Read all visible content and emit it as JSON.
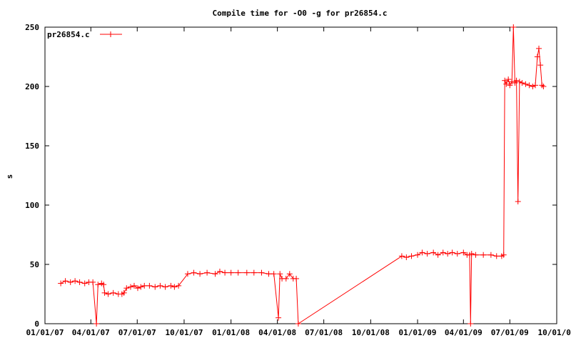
{
  "chart_data": {
    "type": "line",
    "title": "Compile time for -O0 -g for pr26854.c",
    "xlabel": "",
    "ylabel": "s",
    "ylim": [
      0,
      250
    ],
    "xlim": [
      "2007-01-01",
      "2009-10-01"
    ],
    "x_tick_labels": [
      "01/01/07",
      "04/01/07",
      "07/01/07",
      "10/01/07",
      "01/01/08",
      "04/01/08",
      "07/01/08",
      "10/01/08",
      "01/01/09",
      "04/01/09",
      "07/01/09",
      "10/01/09"
    ],
    "x_tick_dates": [
      "2007-01-01",
      "2007-04-01",
      "2007-07-01",
      "2007-10-01",
      "2008-01-01",
      "2008-04-01",
      "2008-07-01",
      "2008-10-01",
      "2009-01-01",
      "2009-04-01",
      "2009-07-01",
      "2009-10-01"
    ],
    "y_ticks": [
      0,
      50,
      100,
      150,
      200,
      250
    ],
    "grid": false,
    "legend_position": "top-left",
    "series": [
      {
        "name": "pr26854.c",
        "color": "#ff0000",
        "marker": "plus",
        "points": [
          [
            "2007-02-01",
            34
          ],
          [
            "2007-02-10",
            36
          ],
          [
            "2007-02-20",
            35
          ],
          [
            "2007-03-01",
            36
          ],
          [
            "2007-03-10",
            35
          ],
          [
            "2007-03-20",
            34
          ],
          [
            "2007-03-28",
            35
          ],
          [
            "2007-04-05",
            35
          ],
          [
            "2007-04-12",
            0
          ],
          [
            "2007-04-15",
            33
          ],
          [
            "2007-04-22",
            34
          ],
          [
            "2007-04-26",
            33
          ],
          [
            "2007-04-28",
            26
          ],
          [
            "2007-05-05",
            25
          ],
          [
            "2007-05-15",
            26
          ],
          [
            "2007-05-25",
            25
          ],
          [
            "2007-06-01",
            25
          ],
          [
            "2007-06-05",
            26
          ],
          [
            "2007-06-10",
            30
          ],
          [
            "2007-06-18",
            31
          ],
          [
            "2007-06-25",
            32
          ],
          [
            "2007-07-02",
            30
          ],
          [
            "2007-07-08",
            31
          ],
          [
            "2007-07-15",
            32
          ],
          [
            "2007-07-25",
            32
          ],
          [
            "2007-08-05",
            31
          ],
          [
            "2007-08-15",
            32
          ],
          [
            "2007-08-25",
            31
          ],
          [
            "2007-09-05",
            32
          ],
          [
            "2007-09-12",
            31
          ],
          [
            "2007-09-20",
            32
          ],
          [
            "2007-10-08",
            42
          ],
          [
            "2007-10-20",
            43
          ],
          [
            "2007-11-01",
            42
          ],
          [
            "2007-11-15",
            43
          ],
          [
            "2007-12-01",
            42
          ],
          [
            "2007-12-10",
            44
          ],
          [
            "2007-12-20",
            43
          ],
          [
            "2008-01-01",
            43
          ],
          [
            "2008-01-15",
            43
          ],
          [
            "2008-02-01",
            43
          ],
          [
            "2008-02-15",
            43
          ],
          [
            "2008-03-01",
            43
          ],
          [
            "2008-03-15",
            42
          ],
          [
            "2008-03-25",
            42
          ],
          [
            "2008-04-03",
            5
          ],
          [
            "2008-04-06",
            42
          ],
          [
            "2008-04-10",
            38
          ],
          [
            "2008-04-18",
            38
          ],
          [
            "2008-04-25",
            42
          ],
          [
            "2008-05-02",
            38
          ],
          [
            "2008-05-08",
            38
          ],
          [
            "2008-05-12",
            0
          ],
          [
            "2008-12-01",
            57
          ],
          [
            "2008-12-10",
            56
          ],
          [
            "2008-12-20",
            57
          ],
          [
            "2009-01-01",
            58
          ],
          [
            "2009-01-10",
            60
          ],
          [
            "2009-01-20",
            59
          ],
          [
            "2009-02-01",
            60
          ],
          [
            "2009-02-10",
            58
          ],
          [
            "2009-02-20",
            60
          ],
          [
            "2009-03-01",
            59
          ],
          [
            "2009-03-10",
            60
          ],
          [
            "2009-03-20",
            59
          ],
          [
            "2009-04-01",
            60
          ],
          [
            "2009-04-08",
            58
          ],
          [
            "2009-04-13",
            58
          ],
          [
            "2009-04-15",
            0
          ],
          [
            "2009-04-17",
            59
          ],
          [
            "2009-04-25",
            58
          ],
          [
            "2009-05-10",
            58
          ],
          [
            "2009-05-25",
            58
          ],
          [
            "2009-06-05",
            57
          ],
          [
            "2009-06-15",
            57
          ],
          [
            "2009-06-19",
            58
          ],
          [
            "2009-06-21",
            205
          ],
          [
            "2009-06-24",
            202
          ],
          [
            "2009-06-28",
            206
          ],
          [
            "2009-07-01",
            201
          ],
          [
            "2009-07-05",
            204
          ],
          [
            "2009-07-08",
            250
          ],
          [
            "2009-07-11",
            203
          ],
          [
            "2009-07-14",
            205
          ],
          [
            "2009-07-17",
            103
          ],
          [
            "2009-07-20",
            204
          ],
          [
            "2009-07-25",
            203
          ],
          [
            "2009-08-01",
            202
          ],
          [
            "2009-08-08",
            201
          ],
          [
            "2009-08-15",
            200
          ],
          [
            "2009-08-20",
            201
          ],
          [
            "2009-08-24",
            225
          ],
          [
            "2009-08-27",
            232
          ],
          [
            "2009-08-30",
            218
          ],
          [
            "2009-09-02",
            201
          ],
          [
            "2009-09-05",
            200
          ]
        ]
      }
    ]
  }
}
